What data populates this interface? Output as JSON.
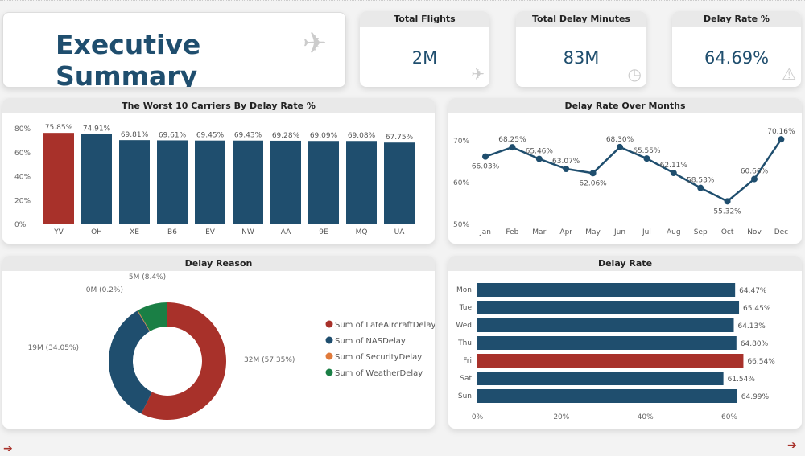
{
  "header": {
    "title": "Executive Summary",
    "icon": "airplane-icon"
  },
  "kpis": [
    {
      "label": "Total Flights",
      "value": "2M",
      "icon": "airplane-icon"
    },
    {
      "label": "Total Delay Minutes",
      "value": "83M",
      "icon": "clock-icon"
    },
    {
      "label": "Delay Rate %",
      "value": "64.69%",
      "icon": "warning-icon"
    }
  ],
  "colors": {
    "primary": "#1f4e6e",
    "highlight": "#a8312a",
    "security": "#e07a3b",
    "weather": "#1a7f45"
  },
  "chart_data": [
    {
      "type": "bar",
      "title": "The Worst 10 Carriers By Delay Rate %",
      "categories": [
        "YV",
        "OH",
        "XE",
        "B6",
        "EV",
        "NW",
        "AA",
        "9E",
        "MQ",
        "UA"
      ],
      "values": [
        75.85,
        74.91,
        69.81,
        69.61,
        69.45,
        69.43,
        69.28,
        69.09,
        69.08,
        67.75
      ],
      "labels": [
        "75.85%",
        "74.91%",
        "69.81%",
        "69.61%",
        "69.45%",
        "69.43%",
        "69.28%",
        "69.09%",
        "69.08%",
        "67.75%"
      ],
      "yticks": [
        "0%",
        "20%",
        "40%",
        "60%",
        "80%"
      ],
      "ylim": [
        0,
        80
      ],
      "highlight_index": 0
    },
    {
      "type": "line",
      "title": "Delay Rate Over Months",
      "categories": [
        "Jan",
        "Feb",
        "Mar",
        "Apr",
        "May",
        "Jun",
        "Jul",
        "Aug",
        "Sep",
        "Oct",
        "Nov",
        "Dec"
      ],
      "values": [
        66.03,
        68.25,
        65.46,
        63.07,
        62.06,
        68.3,
        65.55,
        62.11,
        58.53,
        55.32,
        60.66,
        70.16
      ],
      "labels": [
        "66.03%",
        "68.25%",
        "65.46%",
        "63.07%",
        "62.06%",
        "68.30%",
        "65.55%",
        "62.11%",
        "58.53%",
        "55.32%",
        "60.66%",
        "70.16%"
      ],
      "yticks": [
        "50%",
        "60%",
        "70%"
      ],
      "ylim": [
        50,
        70
      ]
    },
    {
      "type": "pie",
      "title": "Delay Reason",
      "series": [
        {
          "name": "Sum of LateAircraftDelay",
          "value": 57.35,
          "label": "32M (57.35%)",
          "color": "#a8312a"
        },
        {
          "name": "Sum of NASDelay",
          "value": 34.05,
          "label": "19M (34.05%)",
          "color": "#1f4e6e"
        },
        {
          "name": "Sum of SecurityDelay",
          "value": 0.2,
          "label": "0M (0.2%)",
          "color": "#e07a3b"
        },
        {
          "name": "Sum of WeatherDelay",
          "value": 8.4,
          "label": "5M (8.4%)",
          "color": "#1a7f45"
        }
      ],
      "legend": "right"
    },
    {
      "type": "bar",
      "orientation": "horizontal",
      "title": "Delay Rate",
      "categories": [
        "Mon",
        "Tue",
        "Wed",
        "Thu",
        "Fri",
        "Sat",
        "Sun"
      ],
      "values": [
        64.47,
        65.45,
        64.13,
        64.8,
        66.54,
        61.54,
        64.99
      ],
      "labels": [
        "64.47%",
        "65.45%",
        "64.13%",
        "64.80%",
        "66.54%",
        "61.54%",
        "64.99%"
      ],
      "xticks": [
        "0%",
        "20%",
        "40%",
        "60%"
      ],
      "xlim": [
        0,
        60
      ],
      "highlight_index": 4
    }
  ],
  "nav": {
    "prev": "➔",
    "next": "➔"
  }
}
